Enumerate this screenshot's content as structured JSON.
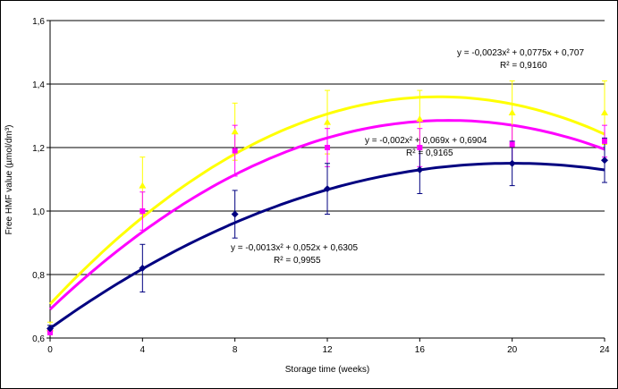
{
  "chart_data": {
    "type": "scatter",
    "xlabel": "Storage time (weeks)",
    "ylabel": "Free HMF value (µmol/dm³)",
    "x_ticks": [
      "0",
      "4",
      "8",
      "12",
      "16",
      "20",
      "24"
    ],
    "y_ticks": [
      "0,6",
      "0,8",
      "1,0",
      "1,2",
      "1,4",
      "1,6"
    ],
    "xlim": [
      0,
      24
    ],
    "ylim": [
      0.6,
      1.6
    ],
    "grid": "horizontal",
    "x": [
      0,
      4,
      8,
      12,
      16,
      20,
      24
    ],
    "series": [
      {
        "color": "#ffff00",
        "marker": "triangle",
        "values": [
          0.63,
          1.08,
          1.25,
          1.28,
          1.29,
          1.31,
          1.31
        ],
        "error": [
          0.02,
          0.09,
          0.09,
          0.1,
          0.09,
          0.1,
          0.1
        ],
        "fit": {
          "a": -0.0023,
          "b": 0.0775,
          "c": 0.707
        },
        "equation": "y = -0,0023x² + 0,0775x + 0,707",
        "r2": "R² = 0,9160"
      },
      {
        "color": "#ff00ff",
        "marker": "square",
        "values": [
          0.62,
          1.0,
          1.19,
          1.2,
          1.2,
          1.21,
          1.22
        ],
        "error": [
          0.01,
          0.06,
          0.08,
          0.06,
          0.06,
          0.06,
          0.05
        ],
        "fit": {
          "a": -0.002,
          "b": 0.069,
          "c": 0.6904
        },
        "equation": "y = -0,002x² + 0,069x + 0,6904",
        "r2": "R² = 0,9165"
      },
      {
        "color": "#000080",
        "marker": "diamond",
        "values": [
          0.63,
          0.82,
          0.99,
          1.07,
          1.13,
          1.15,
          1.16
        ],
        "error": [
          0.01,
          0.075,
          0.075,
          0.08,
          0.075,
          0.07,
          0.07
        ],
        "fit": {
          "a": -0.0013,
          "b": 0.052,
          "c": 0.6305
        },
        "equation": "y = -0,0013x² + 0,052x + 0,6305",
        "r2": "R² = 0,9955"
      }
    ]
  }
}
